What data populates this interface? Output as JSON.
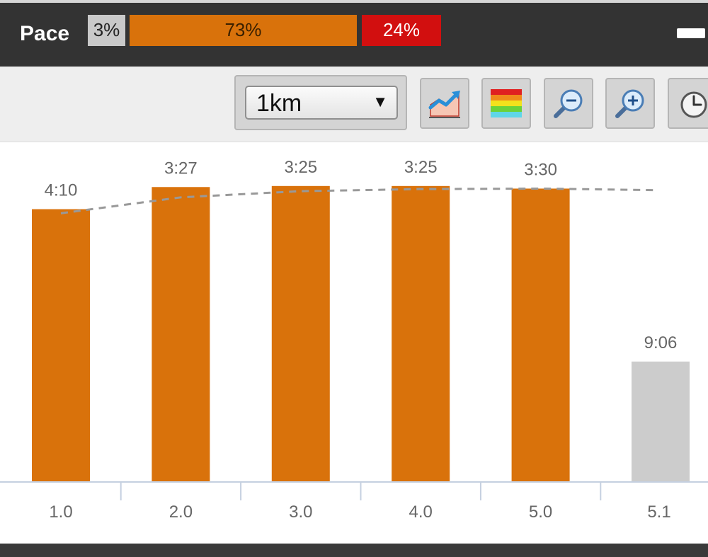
{
  "header": {
    "title": "Pace",
    "zones": [
      {
        "label": "3%",
        "color": "#c9c9c9"
      },
      {
        "label": "73%",
        "color": "#d9720b"
      },
      {
        "label": "24%",
        "color": "#d20f0f"
      }
    ]
  },
  "toolbar": {
    "split_select": {
      "value": "1km",
      "arrow": "▼"
    },
    "buttons": [
      {
        "name": "trend-chart-icon"
      },
      {
        "name": "color-zones-icon"
      },
      {
        "name": "zoom-out-icon"
      },
      {
        "name": "zoom-in-icon"
      },
      {
        "name": "clock-icon"
      }
    ]
  },
  "chart_data": {
    "type": "bar",
    "title": "",
    "xlabel": "",
    "ylabel": "",
    "categories": [
      "1.0",
      "2.0",
      "3.0",
      "4.0",
      "5.0",
      "5.1"
    ],
    "series": [
      {
        "values": [
          250,
          207,
          205,
          205,
          210,
          546
        ],
        "labels": [
          "4:10",
          "3:27",
          "3:25",
          "3:25",
          "3:30",
          "9:06"
        ],
        "colors": [
          "#d9720b",
          "#d9720b",
          "#d9720b",
          "#d9720b",
          "#d9720b",
          "#cccccc"
        ]
      }
    ],
    "trend_line": {
      "style": "dashed",
      "color": "#999999",
      "values": [
        258,
        227,
        215,
        211,
        210,
        213
      ]
    },
    "inverted_axis": true,
    "ylim": [
      780,
      120
    ],
    "grid": false,
    "colors": {
      "bar": "#d9720b",
      "partial_bar": "#cccccc",
      "axis": "#c5d0e0"
    }
  }
}
